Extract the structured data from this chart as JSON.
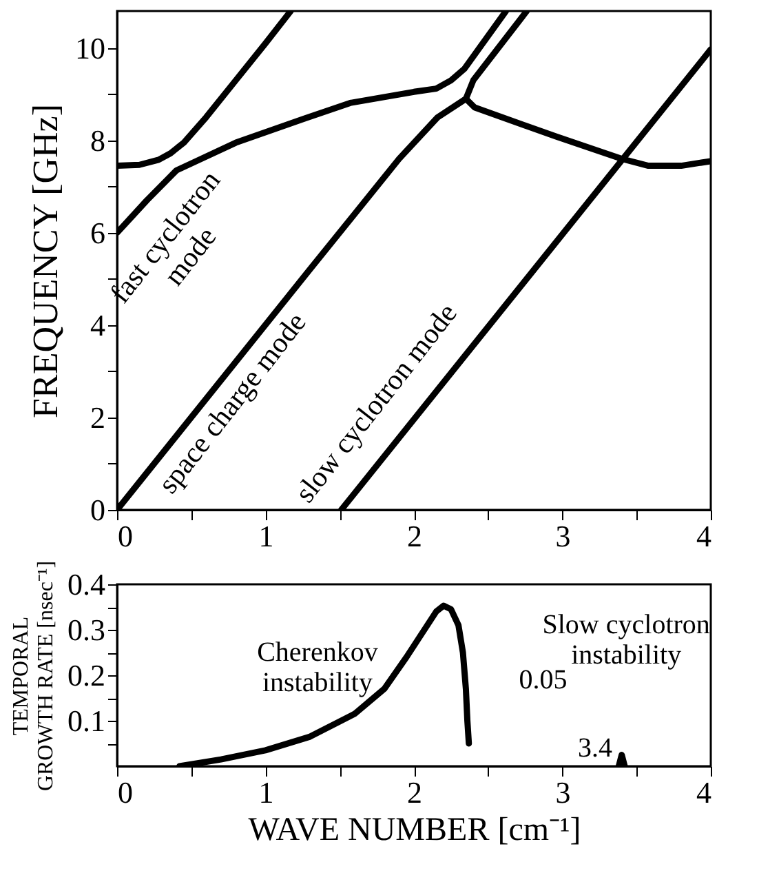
{
  "chart_data": [
    {
      "type": "line",
      "ylabel": "FREQUENCY [GHz]",
      "xlim": [
        0,
        4
      ],
      "ylim": [
        0,
        10.8
      ],
      "xticks": [
        0,
        {
          "value": 0.5,
          "label": null
        },
        1,
        {
          "value": 1.5,
          "label": null
        },
        2,
        {
          "value": 2.5,
          "label": null
        },
        3,
        {
          "value": 3.5,
          "label": null
        },
        4
      ],
      "yticks": [
        0,
        {
          "value": 1,
          "label": null
        },
        2,
        {
          "value": 3,
          "label": null
        },
        4,
        {
          "value": 5,
          "label": null
        },
        6,
        {
          "value": 7,
          "label": null
        },
        8,
        {
          "value": 9,
          "label": null
        },
        10
      ],
      "grid": false,
      "legend": false,
      "annotations": [
        "fast cyclotron\nmode",
        "space charge mode",
        "slow cyclotron mode"
      ],
      "series": [
        {
          "color": "#000000",
          "x": [
            0,
            0.15,
            0.28,
            0.36,
            0.45,
            0.6,
            0.8,
            1.0,
            1.17
          ],
          "values": [
            7.45,
            7.47,
            7.58,
            7.72,
            7.95,
            8.5,
            9.3,
            10.1,
            10.8
          ]
        },
        {
          "color": "#000000",
          "x": [
            0,
            0.2,
            0.4,
            0.5,
            0.8,
            1.26,
            1.57,
            2.0,
            2.15,
            2.25,
            2.34,
            2.62
          ],
          "values": [
            6.0,
            6.7,
            7.35,
            7.5,
            7.95,
            8.47,
            8.81,
            9.05,
            9.12,
            9.3,
            9.55,
            10.8
          ]
        },
        {
          "color": "#000000",
          "x": [
            0,
            1.29,
            1.9,
            2.16,
            2.35,
            2.41,
            2.96,
            3.4,
            3.58,
            3.8,
            4.0
          ],
          "values": [
            0,
            5.17,
            7.6,
            8.5,
            8.9,
            8.71,
            8.08,
            7.6,
            7.45,
            7.45,
            7.55
          ]
        },
        {
          "color": "#000000",
          "x": [
            2.35,
            2.4,
            2.76
          ],
          "values": [
            8.9,
            9.3,
            10.8
          ]
        },
        {
          "color": "#000000",
          "x": [
            1.51,
            4.0
          ],
          "values": [
            0,
            9.97
          ]
        }
      ]
    },
    {
      "type": "line",
      "xlabel": "WAVE NUMBER [cm⁻¹]",
      "ylabel": "TEMPORAL\nGROWTH RATE [nsec⁻¹]",
      "xlim": [
        0,
        4
      ],
      "ylim": [
        0,
        0.4
      ],
      "xticks": [
        0,
        {
          "value": 0.5,
          "label": null
        },
        1,
        {
          "value": 1.5,
          "label": null
        },
        2,
        {
          "value": 2.5,
          "label": null
        },
        3,
        {
          "value": 3.5,
          "label": null
        },
        4
      ],
      "yticks": [
        {
          "value": 0.05,
          "label": null
        },
        0.1,
        {
          "value": 0.15,
          "label": null
        },
        0.2,
        {
          "value": 0.25,
          "label": null
        },
        0.3,
        {
          "value": 0.35,
          "label": null
        },
        0.4
      ],
      "grid": false,
      "legend": false,
      "annotations": [
        "Cherenkov\ninstability",
        "Slow cyclotron\ninstability",
        "0.05",
        "3.4"
      ],
      "series": [
        {
          "color": "#000000",
          "x": [
            0.42,
            0.7,
            1.0,
            1.3,
            1.6,
            1.8,
            1.95,
            2.05,
            2.15,
            2.2,
            2.25,
            2.3,
            2.33,
            2.35,
            2.36,
            2.37
          ],
          "values": [
            0.0,
            0.015,
            0.035,
            0.065,
            0.115,
            0.17,
            0.24,
            0.29,
            0.34,
            0.353,
            0.345,
            0.31,
            0.25,
            0.17,
            0.1,
            0.05
          ]
        },
        {
          "color": "#000000",
          "x": [
            3.38,
            3.4,
            3.42
          ],
          "values": [
            0.0,
            0.025,
            0.0
          ]
        }
      ]
    }
  ]
}
